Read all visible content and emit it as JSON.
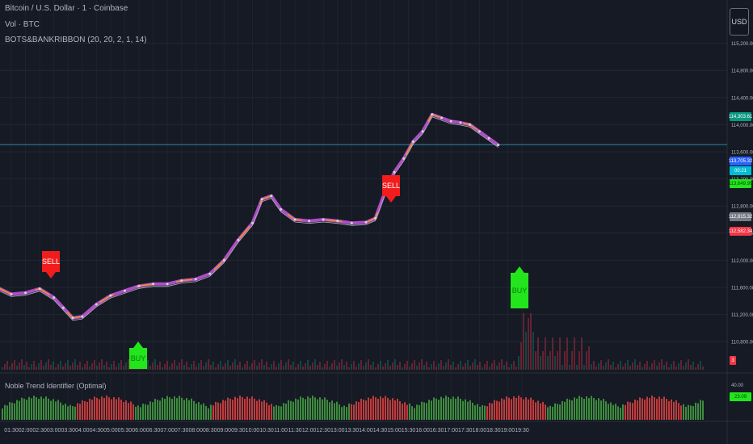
{
  "header": {
    "title": "Bitcoin / U.S. Dollar · 1 · Coinbase",
    "volume_label": "Vol · BTC",
    "indicator_label": "BOTS&BANKRIBBON (20, 20, 2, 1, 14)"
  },
  "currency_button": "USD",
  "indicator_pane": {
    "label": "Noble Trend Identifier (Optimal)",
    "value_tag": "23.09",
    "axis_top": "40.00",
    "axis_mid": "20.00"
  },
  "volume_tag": "3",
  "signals": [
    {
      "type": "sell",
      "label": "SELL",
      "time": "02:30"
    },
    {
      "type": "buy",
      "label": "BUY",
      "time": "04:30"
    },
    {
      "type": "sell",
      "label": "SELL",
      "time": "11:00"
    },
    {
      "type": "buy",
      "label": "BUY",
      "time": "14:30"
    }
  ],
  "price_tags": [
    {
      "value": "114,303.61",
      "color": "#089981"
    },
    {
      "value": "113,705.32",
      "color": "#2962ff"
    },
    {
      "value": "00:21",
      "color": "#00bcd4"
    },
    {
      "value": "113,649.99",
      "color": "#22e51c"
    },
    {
      "value": "112,815.32",
      "color": "#787b86"
    },
    {
      "value": "112,582.34",
      "color": "#f23645"
    }
  ],
  "chart_data": {
    "type": "line",
    "title": "Bitcoin / U.S. Dollar · 1 · Coinbase",
    "y_axis_labels": [
      "115,200.00",
      "114,800.00",
      "114,400.00",
      "114,000.00",
      "113,600.00",
      "113,200.00",
      "112,800.00",
      "112,400.00",
      "112,000.00",
      "111,600.00",
      "111,200.00",
      "110,800.00"
    ],
    "ylim": [
      110600,
      115600
    ],
    "x_axis_labels": [
      "01:30",
      "02:00",
      "02:30",
      "03:00",
      "03:30",
      "04:00",
      "04:30",
      "05:00",
      "05:30",
      "06:00",
      "06:30",
      "07:00",
      "07:30",
      "08:00",
      "08:30",
      "09:00",
      "09:30",
      "10:00",
      "10:30",
      "11:00",
      "11:30",
      "12:00",
      "12:30",
      "13:00",
      "13:30",
      "14:00",
      "14:30",
      "15:00",
      "15:30",
      "16:00",
      "16:30",
      "17:00",
      "17:30",
      "18:00",
      "18:30",
      "19:00",
      "19:30"
    ],
    "series": [
      {
        "x": [
          "01:00",
          "01:30",
          "02:00",
          "02:30",
          "03:00",
          "03:20",
          "03:40",
          "04:00",
          "04:30",
          "05:00",
          "05:30",
          "06:00",
          "06:30",
          "07:00",
          "07:30",
          "08:00",
          "08:30",
          "09:00",
          "09:30",
          "10:00",
          "10:20",
          "10:40",
          "11:00",
          "11:30",
          "12:00",
          "12:30",
          "13:00",
          "13:30",
          "14:00",
          "14:20",
          "14:40",
          "15:00",
          "15:20",
          "15:40",
          "16:00",
          "16:20",
          "16:40",
          "17:00",
          "17:20",
          "17:40",
          "18:00",
          "18:20",
          "18:40"
        ],
        "values": [
          111600,
          111500,
          111520,
          111580,
          111450,
          111300,
          111150,
          111170,
          111350,
          111480,
          111550,
          111620,
          111650,
          111650,
          111700,
          111720,
          111800,
          112000,
          112300,
          112550,
          112900,
          112950,
          112750,
          112600,
          112580,
          112600,
          112580,
          112550,
          112560,
          112620,
          113000,
          113300,
          113500,
          113750,
          113900,
          114150,
          114100,
          114050,
          114030,
          114000,
          113900,
          113800,
          113700
        ]
      }
    ]
  }
}
